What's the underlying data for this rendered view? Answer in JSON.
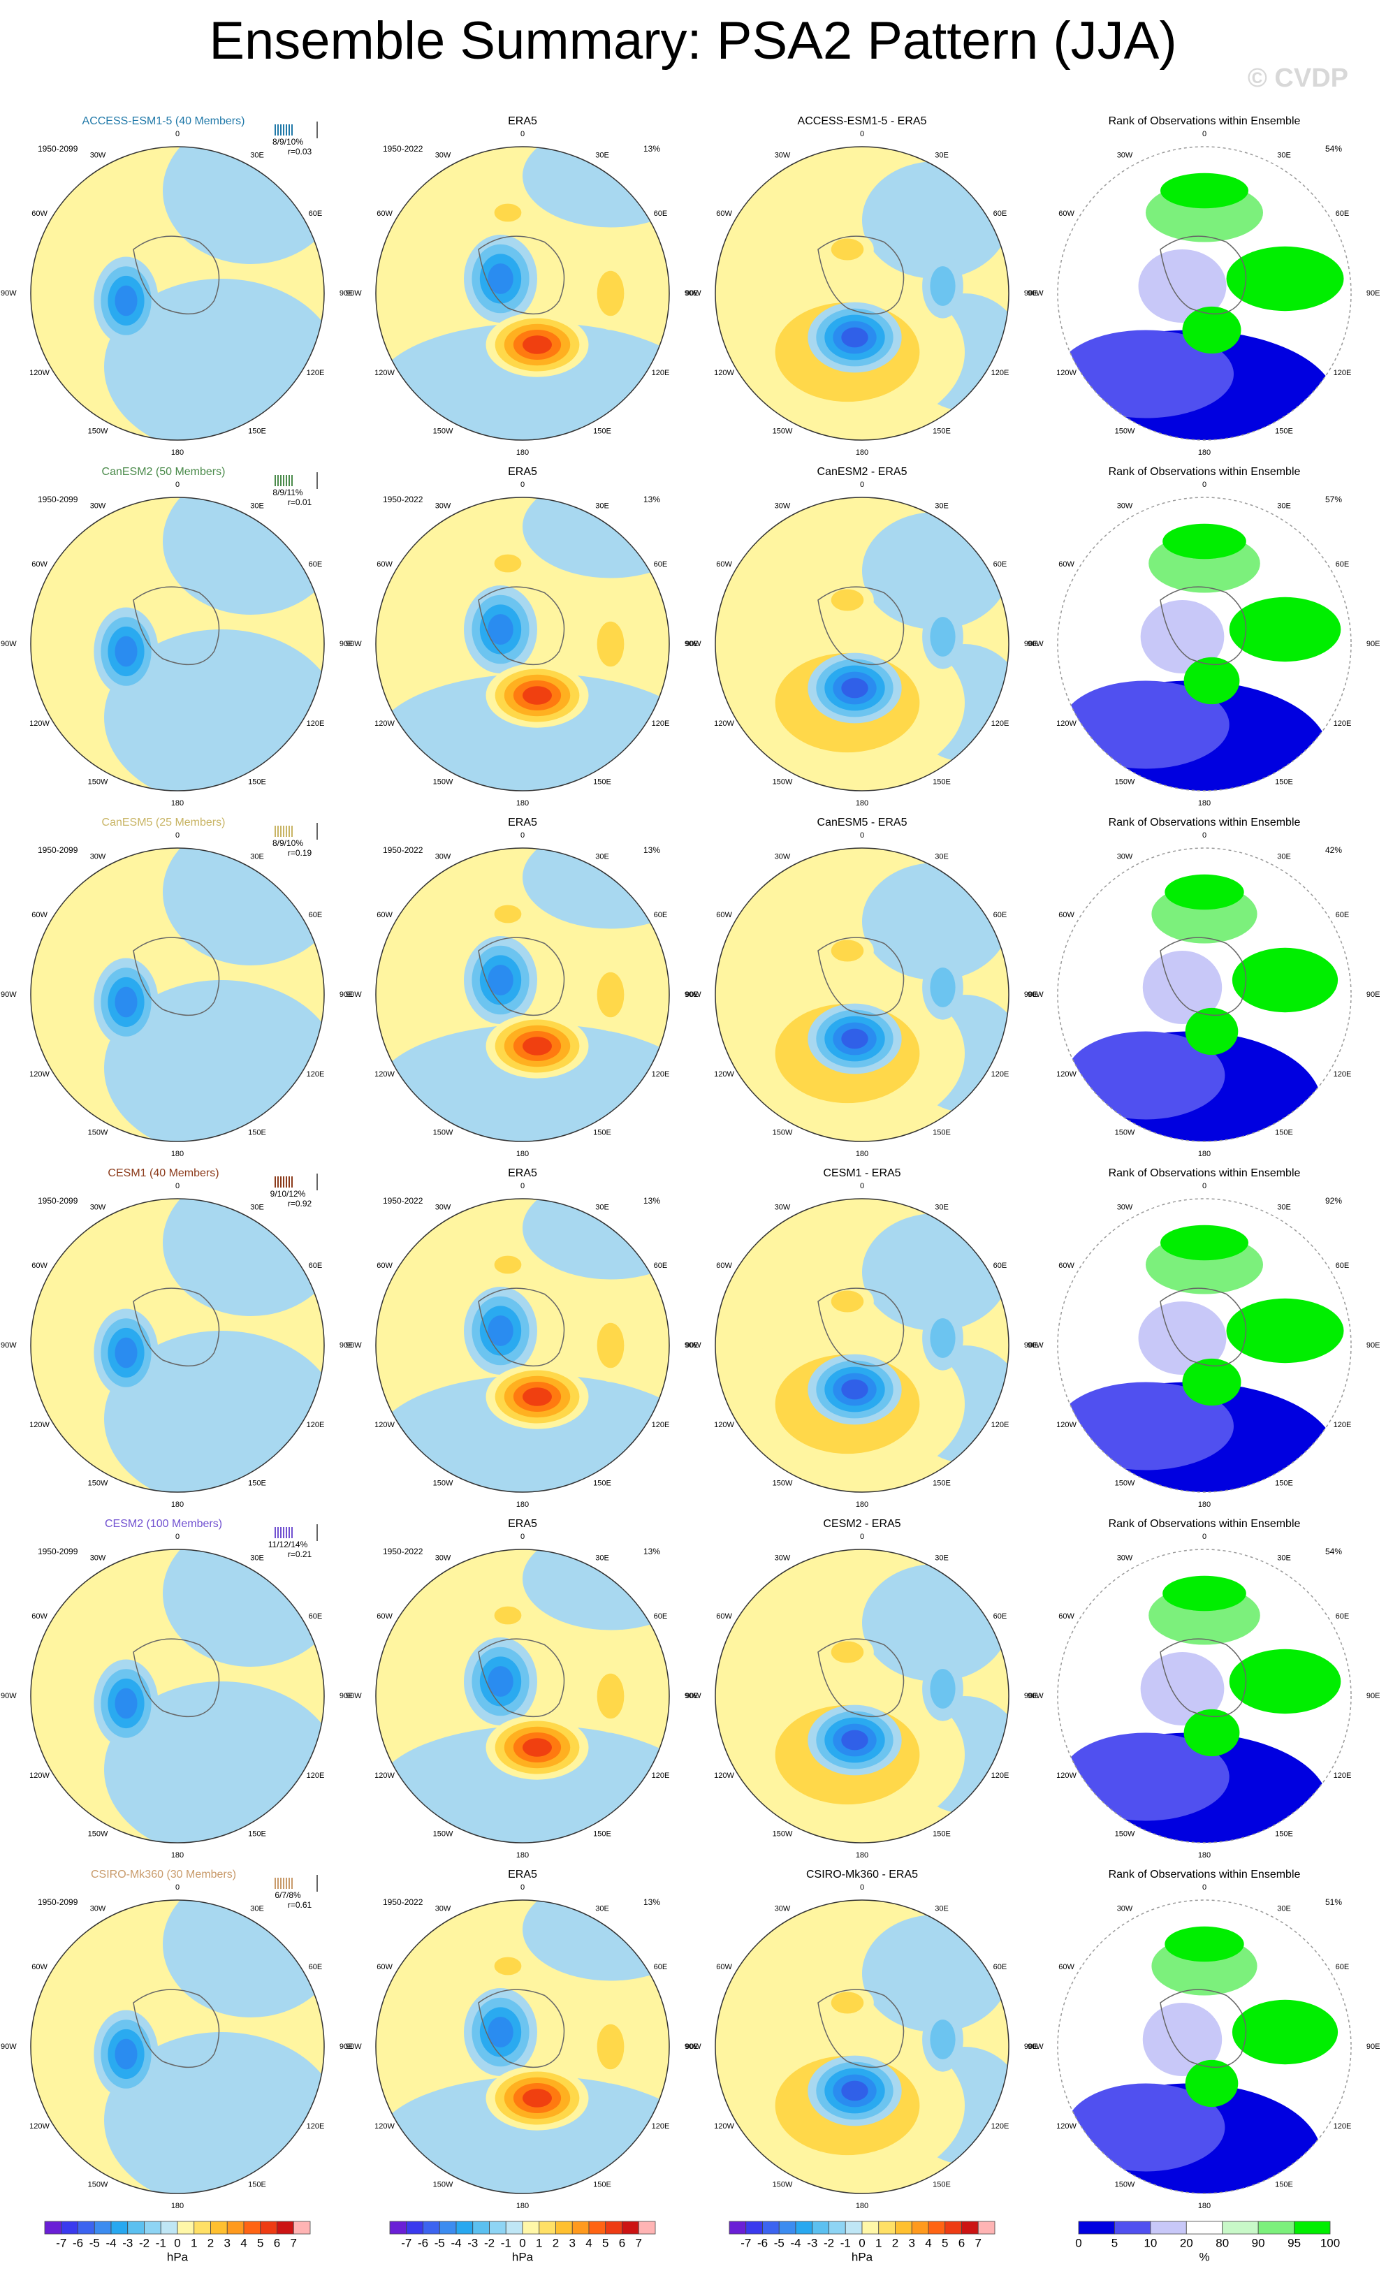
{
  "header": {
    "title": "Ensemble Summary: PSA2 Pattern (JJA)",
    "credit": "© CVDP"
  },
  "longitude_labels": [
    "0",
    "30E",
    "60E",
    "90E",
    "120E",
    "150E",
    "180",
    "150W",
    "120W",
    "90W",
    "60W",
    "30W"
  ],
  "rows": [
    {
      "model": "ACCESS-ESM1-5 (40 Members)",
      "model_color": "#1f78a8",
      "model_period": "1950-2099",
      "ratios": "8/9/10%",
      "correlation": "r=0.03",
      "obs_title": "ERA5",
      "obs_period": "1950-2022",
      "obs_pct": "13%",
      "diff_title": "ACCESS-ESM1-5 - ERA5",
      "rank_title": "Rank of Observations within Ensemble",
      "rank_pct": "54%"
    },
    {
      "model": "CanESM2 (50 Members)",
      "model_color": "#4a8a4a",
      "model_period": "1950-2099",
      "ratios": "8/9/11%",
      "correlation": "r=0.01",
      "obs_title": "ERA5",
      "obs_period": "1950-2022",
      "obs_pct": "13%",
      "diff_title": "CanESM2 - ERA5",
      "rank_title": "Rank of Observations within Ensemble",
      "rank_pct": "57%"
    },
    {
      "model": "CanESM5 (25 Members)",
      "model_color": "#c8b464",
      "model_period": "1950-2099",
      "ratios": "8/9/10%",
      "correlation": "r=0.19",
      "obs_title": "ERA5",
      "obs_period": "1950-2022",
      "obs_pct": "13%",
      "diff_title": "CanESM5 - ERA5",
      "rank_title": "Rank of Observations within Ensemble",
      "rank_pct": "42%"
    },
    {
      "model": "CESM1 (40 Members)",
      "model_color": "#8b3a1a",
      "model_period": "1950-2099",
      "ratios": "9/10/12%",
      "correlation": "r=0.92",
      "obs_title": "ERA5",
      "obs_period": "1950-2022",
      "obs_pct": "13%",
      "diff_title": "CESM1 - ERA5",
      "rank_title": "Rank of Observations within Ensemble",
      "rank_pct": "92%"
    },
    {
      "model": "CESM2 (100 Members)",
      "model_color": "#7050d0",
      "model_period": "1950-2099",
      "ratios": "11/12/14%",
      "correlation": "r=0.21",
      "obs_title": "ERA5",
      "obs_period": "1950-2022",
      "obs_pct": "13%",
      "diff_title": "CESM2 - ERA5",
      "rank_title": "Rank of Observations within Ensemble",
      "rank_pct": "54%"
    },
    {
      "model": "CSIRO-Mk360 (30 Members)",
      "model_color": "#c89a6a",
      "model_period": "1950-2099",
      "ratios": "6/7/8%",
      "correlation": "r=0.61",
      "obs_title": "ERA5",
      "obs_period": "1950-2022",
      "obs_pct": "13%",
      "diff_title": "CSIRO-Mk360 - ERA5",
      "rank_title": "Rank of Observations within Ensemble",
      "rank_pct": "51%"
    }
  ],
  "colorbars": {
    "hpa_labels": [
      "-7",
      "-6",
      "-5",
      "-4",
      "-3",
      "-2",
      "-1",
      "0",
      "1",
      "2",
      "3",
      "4",
      "5",
      "6",
      "7"
    ],
    "hpa_unit": "hPa",
    "rank_labels": [
      "0",
      "5",
      "10",
      "20",
      "80",
      "90",
      "95",
      "100"
    ],
    "rank_unit": "%"
  }
}
